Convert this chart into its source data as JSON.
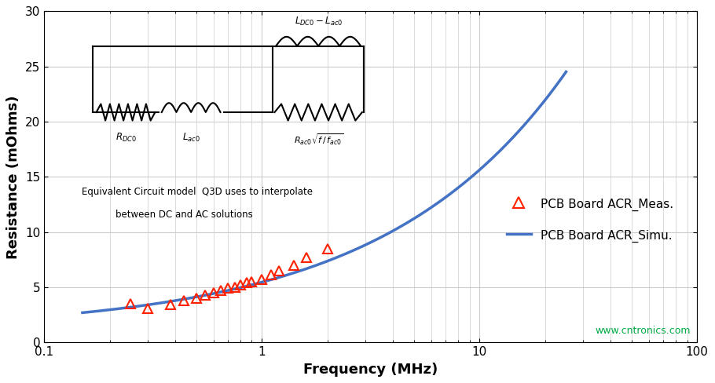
{
  "xlabel": "Frequency (MHz)",
  "ylabel": "Resistance (mOhms)",
  "xlim": [
    0.1,
    100
  ],
  "ylim": [
    0,
    30
  ],
  "yticks": [
    0,
    5,
    10,
    15,
    20,
    25,
    30
  ],
  "background_color": "#ffffff",
  "grid_color": "#cccccc",
  "sim_color": "#4472C4",
  "meas_color": "#FF2200",
  "meas_freq": [
    0.25,
    0.3,
    0.38,
    0.44,
    0.5,
    0.55,
    0.6,
    0.65,
    0.7,
    0.75,
    0.8,
    0.85,
    0.9,
    1.0,
    1.1,
    1.2,
    1.4,
    1.6,
    2.0
  ],
  "meas_resist": [
    3.5,
    3.1,
    3.4,
    3.8,
    4.0,
    4.3,
    4.5,
    4.7,
    4.9,
    5.0,
    5.2,
    5.4,
    5.5,
    5.7,
    6.1,
    6.5,
    7.0,
    7.7,
    8.5
  ],
  "sim_A": 4.4,
  "sim_B": 1.05,
  "sim_n": 0.52,
  "sim_f_start": 0.15,
  "sim_f_end": 25,
  "watermark": "www.cntronics.com",
  "watermark_color": "#00AA44",
  "legend_meas": "PCB Board ACR_Meas.",
  "legend_simu": "PCB Board ACR_Simu.",
  "circuit_text1": "Equivalent Circuit model  Q3D uses to interpolate",
  "circuit_text2": "between DC and AC solutions"
}
